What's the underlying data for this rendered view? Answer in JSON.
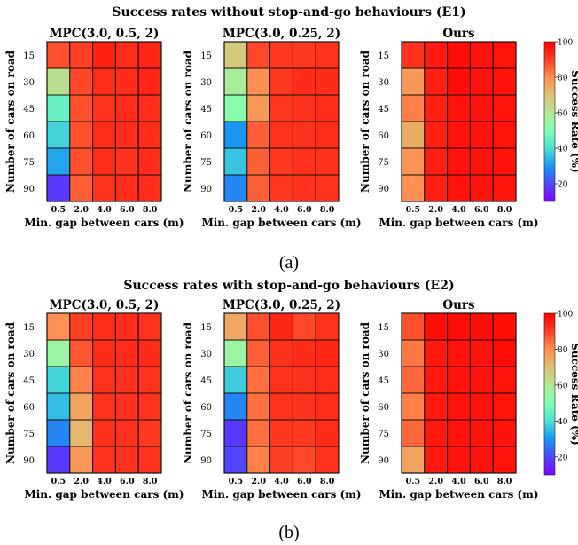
{
  "caption_a": "(a)",
  "caption_b": "(b)",
  "colorbar": {
    "label": "Success Rate (%)",
    "ticks": [
      "20",
      "40",
      "60",
      "80",
      "100"
    ],
    "tick_values": [
      20,
      40,
      60,
      80,
      100
    ],
    "range": [
      10,
      100
    ]
  },
  "colors": {
    "scale": [
      "#7f00ff",
      "#5046fd",
      "#1996f3",
      "#4be3d3",
      "#80ffb4",
      "#b3e893",
      "#dcc173",
      "#ff8f52",
      "#ff3f24",
      "#ff0000"
    ]
  },
  "chart_data": [
    {
      "type": "heatmap",
      "row_title": "Success rates without stop-and-go behaviours (E1)",
      "title": "MPC(3.0, 0.5, 2)",
      "xlabel": "Min. gap between cars (m)",
      "ylabel": "Number of cars on road",
      "x": [
        "0.5",
        "2.0",
        "4.0",
        "6.0",
        "8.0"
      ],
      "y": [
        "15",
        "30",
        "45",
        "60",
        "75",
        "90"
      ],
      "values": [
        [
          88,
          90,
          95,
          93,
          94
        ],
        [
          62,
          89,
          93,
          93,
          94
        ],
        [
          45,
          88,
          92,
          93,
          93
        ],
        [
          38,
          88,
          93,
          93,
          93
        ],
        [
          32,
          88,
          93,
          92,
          93
        ],
        [
          18,
          86,
          92,
          93,
          93
        ]
      ]
    },
    {
      "type": "heatmap",
      "title": "MPC(3.0, 0.25, 2)",
      "xlabel": "Min. gap between cars (m)",
      "ylabel": "Number of cars on road",
      "x": [
        "0.5",
        "2.0",
        "4.0",
        "6.0",
        "8.0"
      ],
      "y": [
        "15",
        "30",
        "45",
        "60",
        "75",
        "90"
      ],
      "values": [
        [
          68,
          89,
          91,
          91,
          92
        ],
        [
          58,
          80,
          91,
          93,
          93
        ],
        [
          52,
          78,
          91,
          92,
          93
        ],
        [
          30,
          86,
          92,
          92,
          93
        ],
        [
          36,
          86,
          91,
          92,
          92
        ],
        [
          28,
          86,
          91,
          92,
          92
        ]
      ]
    },
    {
      "type": "heatmap",
      "title": "Ours",
      "xlabel": "Min. gap between cars (m)",
      "ylabel": "Number of cars on road",
      "x": [
        "0.5",
        "2.0",
        "4.0",
        "6.0",
        "8.0"
      ],
      "y": [
        "15",
        "30",
        "45",
        "60",
        "75",
        "90"
      ],
      "values": [
        [
          92,
          96,
          98,
          97,
          97
        ],
        [
          78,
          95,
          98,
          97,
          97
        ],
        [
          82,
          95,
          97,
          97,
          97
        ],
        [
          74,
          95,
          97,
          97,
          97
        ],
        [
          79,
          95,
          97,
          97,
          97
        ],
        [
          80,
          95,
          97,
          97,
          97
        ]
      ]
    },
    {
      "type": "heatmap",
      "row_title": "Success rates with stop-and-go behaviours (E2)",
      "title": "MPC(3.0, 0.5, 2)",
      "xlabel": "Min. gap between cars (m)",
      "ylabel": "Number of cars on road",
      "x": [
        "0.5",
        "2.0",
        "4.0",
        "6.0",
        "8.0"
      ],
      "y": [
        "15",
        "30",
        "45",
        "60",
        "75",
        "90"
      ],
      "values": [
        [
          80,
          90,
          93,
          93,
          92
        ],
        [
          55,
          87,
          93,
          93,
          93
        ],
        [
          38,
          82,
          92,
          92,
          92
        ],
        [
          35,
          76,
          92,
          92,
          92
        ],
        [
          28,
          72,
          92,
          92,
          91
        ],
        [
          18,
          78,
          92,
          92,
          92
        ]
      ]
    },
    {
      "type": "heatmap",
      "title": "MPC(3.0, 0.25, 2)",
      "xlabel": "Min. gap between cars (m)",
      "ylabel": "Number of cars on road",
      "x": [
        "0.5",
        "2.0",
        "4.0",
        "6.0",
        "8.0"
      ],
      "y": [
        "15",
        "30",
        "45",
        "60",
        "75",
        "90"
      ],
      "values": [
        [
          75,
          88,
          94,
          89,
          92
        ],
        [
          55,
          86,
          92,
          93,
          94
        ],
        [
          37,
          84,
          92,
          92,
          93
        ],
        [
          28,
          84,
          92,
          92,
          93
        ],
        [
          18,
          84,
          91,
          91,
          93
        ],
        [
          20,
          82,
          90,
          89,
          92
        ]
      ]
    },
    {
      "type": "heatmap",
      "title": "Ours",
      "xlabel": "Min. gap between cars (m)",
      "ylabel": "Number of cars on road",
      "x": [
        "0.5",
        "2.0",
        "4.0",
        "6.0",
        "8.0"
      ],
      "y": [
        "15",
        "30",
        "45",
        "60",
        "75",
        "90"
      ],
      "values": [
        [
          88,
          98,
          98,
          98,
          98
        ],
        [
          83,
          96,
          97,
          97,
          98
        ],
        [
          85,
          96,
          97,
          97,
          97
        ],
        [
          82,
          96,
          97,
          97,
          97
        ],
        [
          85,
          96,
          97,
          97,
          97
        ],
        [
          76,
          96,
          97,
          97,
          97
        ]
      ]
    }
  ]
}
